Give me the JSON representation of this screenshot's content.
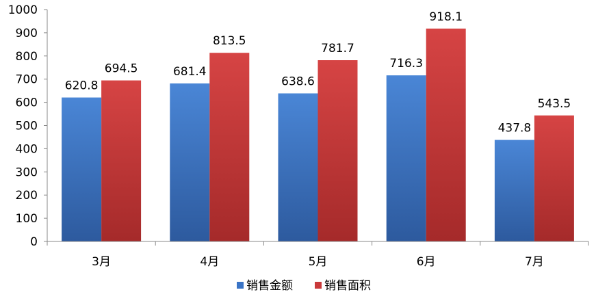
{
  "chart_data": {
    "type": "bar",
    "categories": [
      "3月",
      "4月",
      "5月",
      "6月",
      "7月"
    ],
    "series": [
      {
        "name": "销售金额",
        "values": [
          620.8,
          681.4,
          638.6,
          716.3,
          437.8
        ],
        "color": "#3A74C6"
      },
      {
        "name": "销售面积",
        "values": [
          694.5,
          813.5,
          781.7,
          918.1,
          543.5
        ],
        "color": "#C9393A"
      }
    ],
    "data_labels": [
      [
        "620.8",
        "681.4",
        "638.6",
        "716.3",
        "437.8"
      ],
      [
        "694.5",
        "813.5",
        "781.7",
        "918.1",
        "543.5"
      ]
    ],
    "y_ticks": [
      "0",
      "100",
      "200",
      "300",
      "400",
      "500",
      "600",
      "700",
      "800",
      "900",
      "1000"
    ],
    "ylim": [
      0,
      1000
    ],
    "grid": false,
    "legend": "bottom"
  }
}
